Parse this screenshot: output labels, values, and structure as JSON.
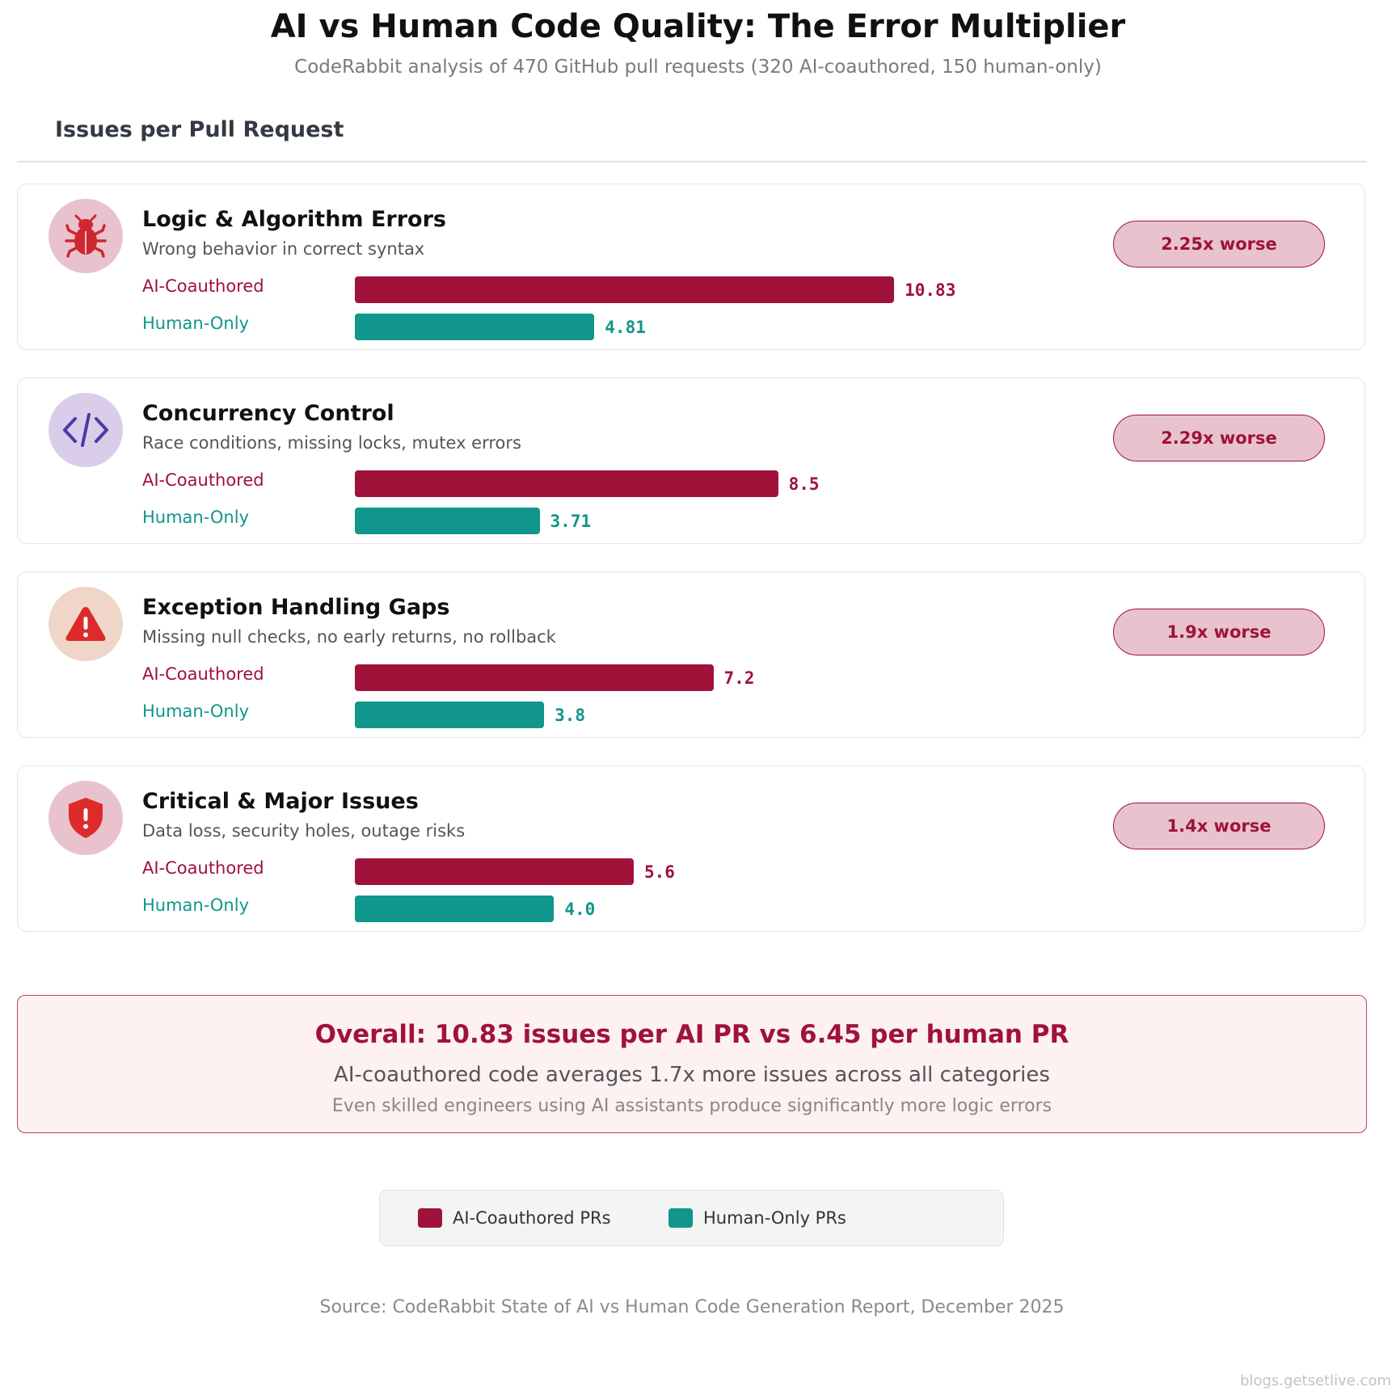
{
  "header": {
    "title": "AI vs Human Code Quality: The Error Multiplier",
    "subtitle": "CodeRabbit analysis of 470 GitHub pull requests (320 AI-coauthored, 150 human-only)"
  },
  "section": {
    "title": "Issues per Pull Request"
  },
  "colors": {
    "ai": "#a0123a",
    "human": "#10968a"
  },
  "chart_data": {
    "type": "bar",
    "orientation": "horizontal",
    "xlim": [
      0,
      11.5
    ],
    "categories": [
      {
        "name": "Logic & Algorithm Errors",
        "description": "Wrong behavior in correct syntax",
        "icon": "bug-icon",
        "icon_bg": "#e8c3ce",
        "icon_color": "#d0262e",
        "ai_label": "AI-Coauthored",
        "human_label": "Human-Only",
        "ai_value": 10.83,
        "ai_value_text": "10.83",
        "human_value": 4.81,
        "human_value_text": "4.81",
        "badge": "2.25x worse"
      },
      {
        "name": "Concurrency Control",
        "description": "Race conditions, missing locks, mutex errors",
        "icon": "code-icon",
        "icon_bg": "#d9cdea",
        "icon_color": "#4b3aa6",
        "ai_label": "AI-Coauthored",
        "human_label": "Human-Only",
        "ai_value": 8.5,
        "ai_value_text": "8.5",
        "human_value": 3.71,
        "human_value_text": "3.71",
        "badge": "2.29x worse"
      },
      {
        "name": "Exception Handling Gaps",
        "description": "Missing null checks, no early returns, no rollback",
        "icon": "warning-icon",
        "icon_bg": "#efd6c8",
        "icon_color": "#dd2a2a",
        "ai_label": "AI-Coauthored",
        "human_label": "Human-Only",
        "ai_value": 7.2,
        "ai_value_text": "7.2",
        "human_value": 3.8,
        "human_value_text": "3.8",
        "badge": "1.9x worse"
      },
      {
        "name": "Critical & Major Issues",
        "description": "Data loss, security holes, outage risks",
        "icon": "shield-alert-icon",
        "icon_bg": "#e8c3ce",
        "icon_color": "#dd2a2a",
        "ai_label": "AI-Coauthored",
        "human_label": "Human-Only",
        "ai_value": 5.6,
        "ai_value_text": "5.6",
        "human_value": 4.0,
        "human_value_text": "4.0",
        "badge": "1.4x worse"
      }
    ]
  },
  "summary": {
    "headline": "Overall: 10.83 issues per AI PR vs 6.45 per human PR",
    "line1": "AI-coauthored code averages 1.7x more issues across all categories",
    "line2": "Even skilled engineers using AI assistants produce significantly more logic errors"
  },
  "legend": {
    "ai_label": "AI-Coauthored PRs",
    "human_label": "Human-Only PRs"
  },
  "footer": {
    "source": "Source: CodeRabbit State of AI vs Human Code Generation Report, December 2025",
    "watermark": "blogs.getsetlive.com"
  }
}
